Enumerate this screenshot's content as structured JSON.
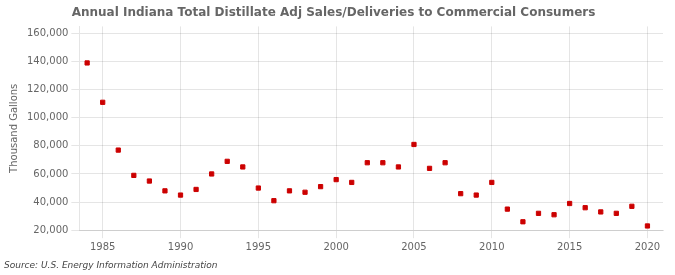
{
  "chart_data": {
    "type": "scatter",
    "title": "Annual Indiana Total Distillate Adj Sales/Deliveries to Commercial Consumers",
    "ylabel": "Thousand Gallons",
    "annotations": [
      "Source: U.S. Energy Information Administration"
    ],
    "x": [
      1984,
      1985,
      1986,
      1987,
      1988,
      1989,
      1990,
      1991,
      1992,
      1993,
      1994,
      1995,
      1996,
      1997,
      1998,
      1999,
      2000,
      2001,
      2002,
      2003,
      2004,
      2005,
      2006,
      2007,
      2008,
      2009,
      2010,
      2011,
      2012,
      2013,
      2014,
      2015,
      2016,
      2017,
      2018,
      2019,
      2020
    ],
    "values": [
      139000,
      111000,
      77000,
      59000,
      55000,
      48000,
      45000,
      49000,
      60000,
      69000,
      65000,
      50000,
      41000,
      48000,
      47000,
      51000,
      56000,
      54000,
      68000,
      68000,
      65000,
      81000,
      64000,
      68000,
      46000,
      45000,
      54000,
      35000,
      26000,
      32000,
      31000,
      39000,
      36000,
      33000,
      32000,
      37000,
      23000
    ],
    "color": "#cc0000",
    "marker": "square",
    "xlim": [
      1983.5,
      2021
    ],
    "xticks": [
      1985,
      1990,
      1995,
      2000,
      2005,
      2010,
      2015,
      2020
    ],
    "ylim": [
      20000,
      165000
    ],
    "yticks": [
      {
        "value": 20000,
        "label": "20,000"
      },
      {
        "value": 40000,
        "label": "40,000"
      },
      {
        "value": 60000,
        "label": "60,000"
      },
      {
        "value": 80000,
        "label": "80,000"
      },
      {
        "value": 100000,
        "label": "100,000"
      },
      {
        "value": 120000,
        "label": "120,000"
      },
      {
        "value": 140000,
        "label": "140,000"
      },
      {
        "value": 160000,
        "label": "160,000"
      }
    ],
    "grid": true
  }
}
